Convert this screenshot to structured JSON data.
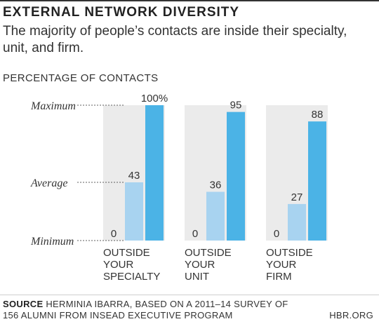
{
  "title": "EXTERNAL NETWORK DIVERSITY",
  "subtitle": "The majority of people’s contacts are inside their specialty, unit, and firm.",
  "caption": "PERCENTAGE OF CONTACTS",
  "source_label": "SOURCE",
  "source_text": "HERMINIA IBARRA, BASED ON A 2011–14 SURVEY OF 156 ALUMNI FROM INSEAD EXECUTIVE PROGRAM",
  "brand": "HBR.ORG",
  "colors": {
    "bg_panel": "#ebebeb",
    "min_bar": "#a8d3f0",
    "avg_bar": "#a8d3f0",
    "max_bar": "#4bb3e6",
    "text": "#333333"
  },
  "chart_data": {
    "type": "bar",
    "ylabel": "PERCENTAGE OF CONTACTS",
    "ylim": [
      0,
      100
    ],
    "y_tick_labels": [
      {
        "label": "Maximum",
        "value": 100
      },
      {
        "label": "Average",
        "value": 43
      },
      {
        "label": "Minimum",
        "value": 0
      }
    ],
    "groups": [
      {
        "category": "OUTSIDE YOUR SPECIALTY",
        "lines": [
          "OUTSIDE",
          "YOUR",
          "SPECIALTY"
        ],
        "values": [
          0,
          43,
          100
        ],
        "labels": [
          "0",
          "43",
          "100%"
        ]
      },
      {
        "category": "OUTSIDE YOUR UNIT",
        "lines": [
          "OUTSIDE",
          "YOUR",
          "UNIT"
        ],
        "values": [
          0,
          36,
          95
        ],
        "labels": [
          "0",
          "36",
          "95"
        ]
      },
      {
        "category": "OUTSIDE YOUR FIRM",
        "lines": [
          "OUTSIDE",
          "YOUR",
          "FIRM"
        ],
        "values": [
          0,
          27,
          88
        ],
        "labels": [
          "0",
          "27",
          "88"
        ]
      }
    ]
  }
}
